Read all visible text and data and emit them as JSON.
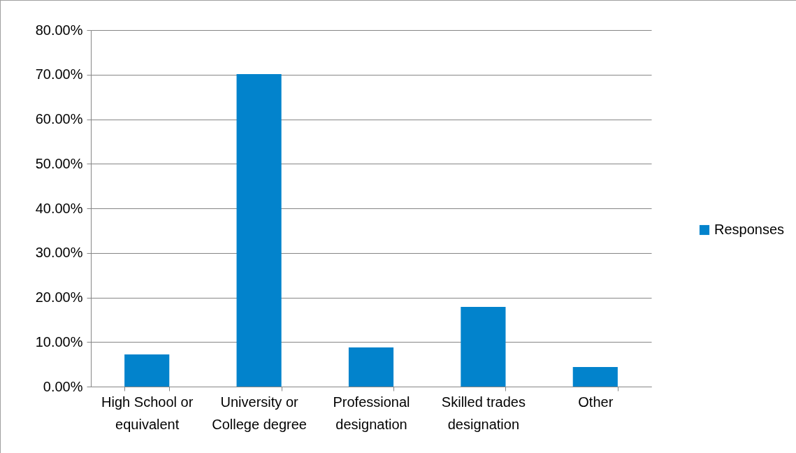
{
  "chart_data": {
    "type": "bar",
    "categories": [
      "High School or equivalent",
      "University or College degree",
      "Professional designation",
      "Skilled trades designation",
      "Other"
    ],
    "series": [
      {
        "name": "Responses",
        "color": "#0283cc",
        "values": [
          7.2,
          70.1,
          8.8,
          17.9,
          4.4
        ]
      }
    ],
    "ylim": [
      0,
      80
    ],
    "yticks": [
      {
        "value": 0,
        "label": "0.00%"
      },
      {
        "value": 10,
        "label": "10.00%"
      },
      {
        "value": 20,
        "label": "20.00%"
      },
      {
        "value": 30,
        "label": "30.00%"
      },
      {
        "value": 40,
        "label": "40.00%"
      },
      {
        "value": 50,
        "label": "50.00%"
      },
      {
        "value": 60,
        "label": "60.00%"
      },
      {
        "value": 70,
        "label": "70.00%"
      },
      {
        "value": 80,
        "label": "80.00%"
      }
    ],
    "grid": "y",
    "legend": "right"
  }
}
